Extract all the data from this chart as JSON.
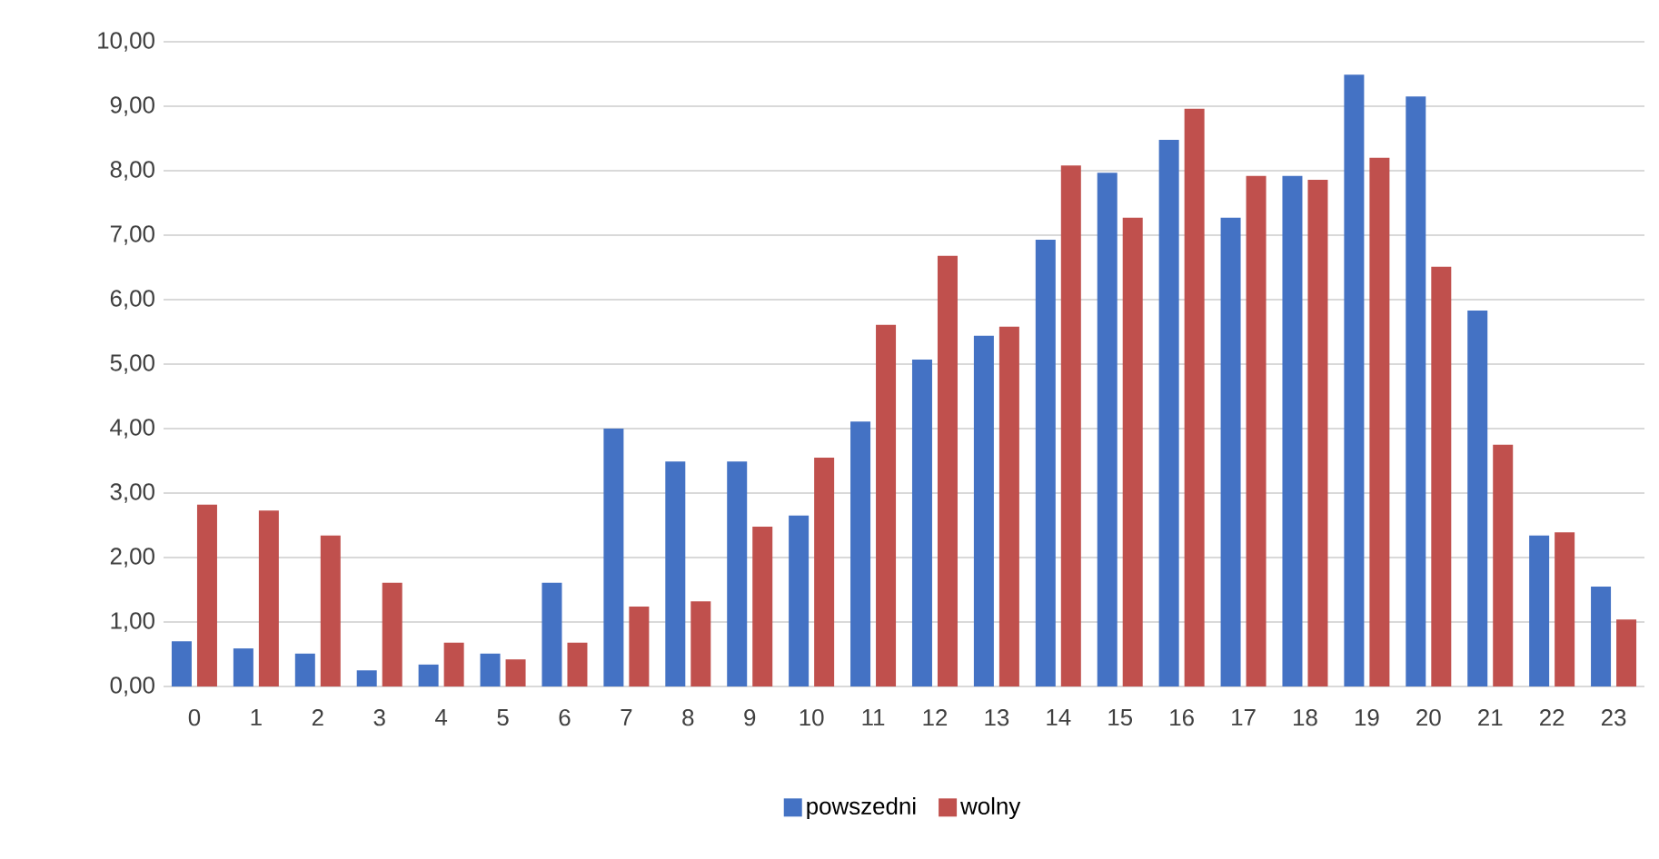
{
  "chart_data": {
    "type": "bar",
    "categories": [
      "0",
      "1",
      "2",
      "3",
      "4",
      "5",
      "6",
      "7",
      "8",
      "9",
      "10",
      "11",
      "12",
      "13",
      "14",
      "15",
      "16",
      "17",
      "18",
      "19",
      "20",
      "21",
      "22",
      "23"
    ],
    "series": [
      {
        "name": "powszedni",
        "color": "#4472c4",
        "values": [
          0.7,
          0.59,
          0.51,
          0.25,
          0.34,
          0.51,
          1.61,
          4.0,
          3.49,
          3.49,
          2.65,
          4.11,
          5.07,
          5.44,
          6.93,
          7.97,
          8.48,
          7.27,
          7.92,
          9.49,
          9.15,
          5.83,
          2.34,
          1.55
        ]
      },
      {
        "name": "wolny",
        "color": "#c0504d",
        "values": [
          2.82,
          2.73,
          2.34,
          1.61,
          0.68,
          0.42,
          0.68,
          1.24,
          1.32,
          2.48,
          3.55,
          5.61,
          6.68,
          5.58,
          8.08,
          7.27,
          8.96,
          7.92,
          7.86,
          8.2,
          6.51,
          3.75,
          2.39,
          1.04
        ]
      }
    ],
    "ylim": [
      0,
      10
    ],
    "yticks": [
      {
        "value": 0,
        "label": "0,00"
      },
      {
        "value": 1,
        "label": "1,00"
      },
      {
        "value": 2,
        "label": "2,00"
      },
      {
        "value": 3,
        "label": "3,00"
      },
      {
        "value": 4,
        "label": "4,00"
      },
      {
        "value": 5,
        "label": "5,00"
      },
      {
        "value": 6,
        "label": "6,00"
      },
      {
        "value": 7,
        "label": "7,00"
      },
      {
        "value": 8,
        "label": "8,00"
      },
      {
        "value": 9,
        "label": "9,00"
      },
      {
        "value": 10,
        "label": "10,00"
      }
    ],
    "grid": "y",
    "legend": "bottom"
  }
}
